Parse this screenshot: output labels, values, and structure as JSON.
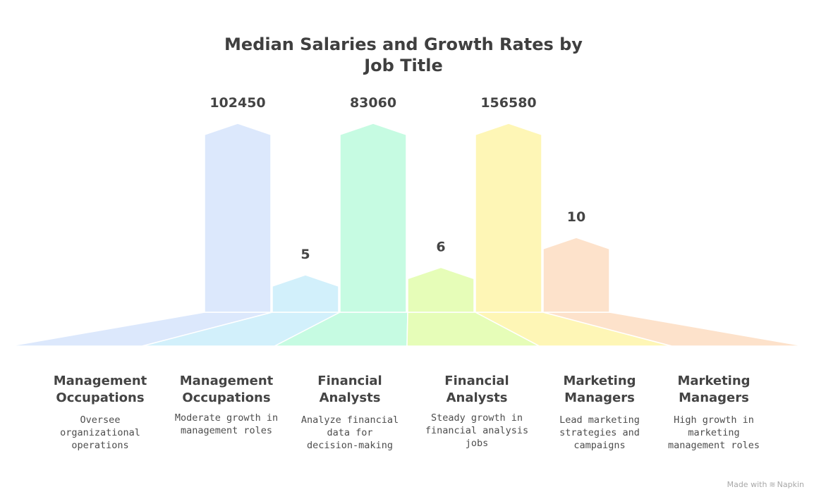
{
  "chart_data": {
    "type": "bar",
    "title": [
      "Median Salaries and Growth Rates by",
      "Job Title"
    ],
    "categories": [
      {
        "title": [
          "Management",
          "Occupations"
        ],
        "description": "Oversee organizational operations",
        "value": 102450,
        "color": "#dce8fc"
      },
      {
        "title": [
          "Management",
          "Occupations"
        ],
        "description": "Moderate growth in management roles",
        "value": 5,
        "color": "#d2f0fb"
      },
      {
        "title": [
          "Financial",
          "Analysts"
        ],
        "description": "Analyze financial data for decision-making",
        "value": 83060,
        "color": "#c6fbe2"
      },
      {
        "title": [
          "Financial",
          "Analysts"
        ],
        "description": "Steady growth in financial analysis jobs",
        "value": 6,
        "color": "#e6fdb8"
      },
      {
        "title": [
          "Marketing",
          "Managers"
        ],
        "description": "Lead marketing strategies and campaigns",
        "value": 156580,
        "color": "#fef6b6"
      },
      {
        "title": [
          "Marketing",
          "Managers"
        ],
        "description": "High growth in marketing management roles",
        "value": 10,
        "color": "#fde2cb"
      }
    ],
    "values": [
      102450,
      5,
      83060,
      6,
      156580,
      10
    ],
    "value_labels": [
      "102450",
      "5",
      "83060",
      "6",
      "156580",
      "10"
    ],
    "grid": false,
    "legend": "none"
  },
  "footer": {
    "made_with": "Made with",
    "brand": "Napkin",
    "brand_icon": "napkin-logo-icon"
  }
}
